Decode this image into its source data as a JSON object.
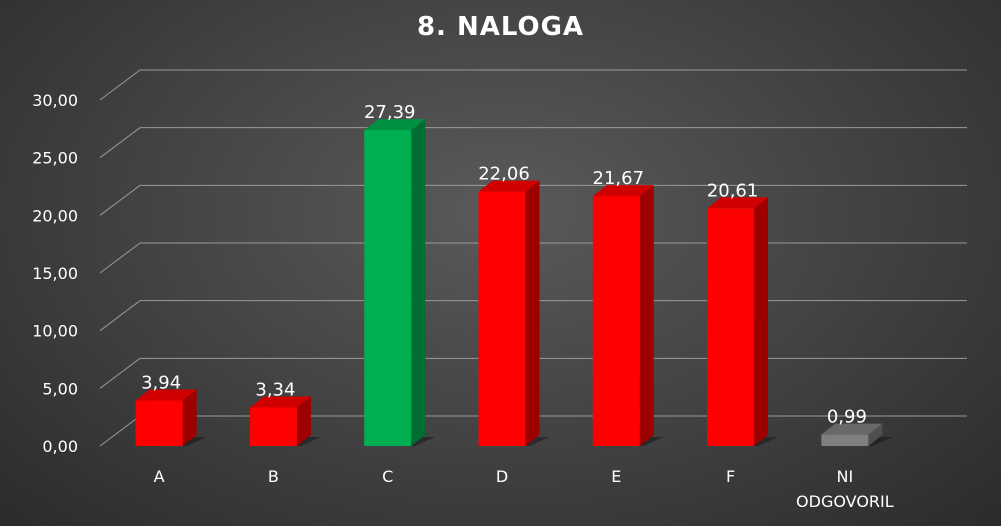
{
  "chart_data": {
    "type": "bar",
    "title": "8. NALOGA",
    "categories": [
      "A",
      "B",
      "C",
      "D",
      "E",
      "F",
      "NI ODGOVORIL"
    ],
    "values": [
      3.94,
      3.34,
      27.39,
      22.06,
      21.67,
      20.61,
      0.99
    ],
    "data_labels": [
      "3,94",
      "3,34",
      "27,39",
      "22,06",
      "21,67",
      "20,61",
      "0,99"
    ],
    "bar_colors": [
      "#ff0000",
      "#ff0000",
      "#00b050",
      "#ff0000",
      "#ff0000",
      "#ff0000",
      "#7f7f7f"
    ],
    "yticks": [
      0,
      5,
      10,
      15,
      20,
      25,
      30
    ],
    "ytick_labels": [
      "0,00",
      "5,00",
      "10,00",
      "15,00",
      "20,00",
      "25,00",
      "30,00"
    ],
    "ylim": [
      0,
      30
    ],
    "grid": true,
    "style": "3d-bar",
    "legend": "none"
  }
}
